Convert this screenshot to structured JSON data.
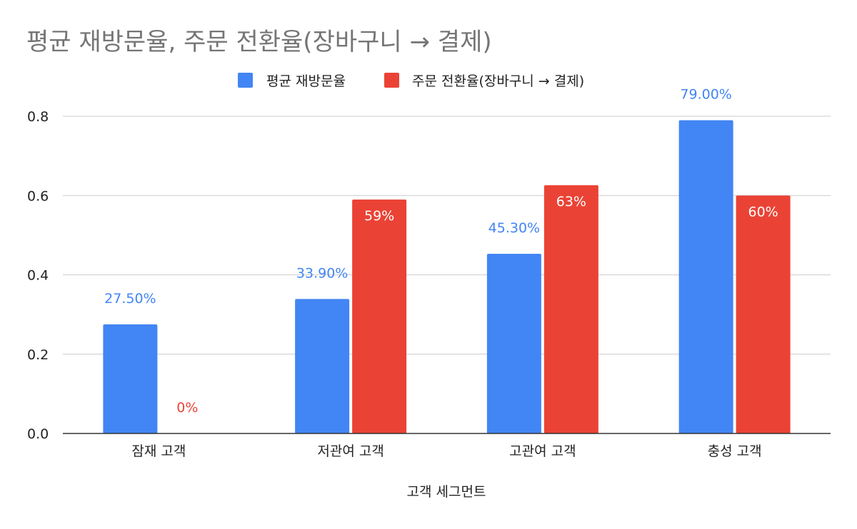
{
  "chart_data": {
    "type": "bar",
    "title": "평균 재방문율, 주문 전환율(장바구니 → 결제)",
    "xlabel": "고객 세그먼트",
    "ylabel": "",
    "ylim": [
      0,
      0.8
    ],
    "yticks": [
      0.0,
      0.2,
      0.4,
      0.6,
      0.8
    ],
    "ytick_labels": [
      "0.0",
      "0.2",
      "0.4",
      "0.6",
      "0.8"
    ],
    "grid": true,
    "legend": "top-center",
    "categories": [
      "잠재 고객",
      "저관여 고객",
      "고관여 고객",
      "충성 고객"
    ],
    "series": [
      {
        "name": "평균 재방문율",
        "color": "#4285f4",
        "values": [
          0.275,
          0.339,
          0.453,
          0.79
        ],
        "labels": [
          "27.50%",
          "33.90%",
          "45.30%",
          "79.00%"
        ],
        "label_position": "above"
      },
      {
        "name": "주문 전환율(장바구니 → 결제)",
        "color": "#ea4335",
        "values": [
          0,
          0.59,
          0.626,
          0.6
        ],
        "labels": [
          "0%",
          "59%",
          "63%",
          "60%"
        ],
        "label_position": "inside"
      }
    ]
  }
}
